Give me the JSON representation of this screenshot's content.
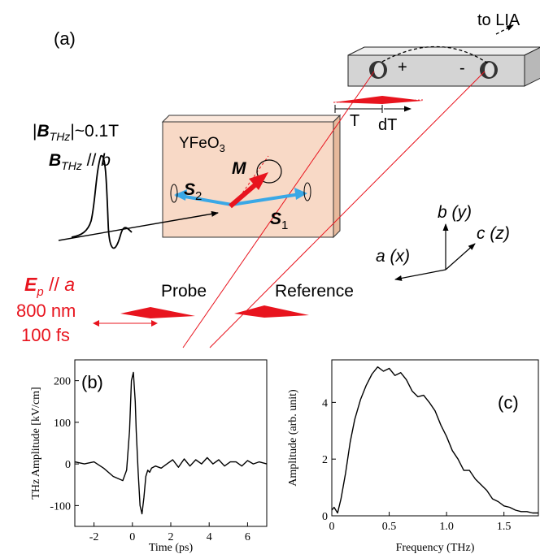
{
  "schematic": {
    "panel_label": "(a)",
    "lia_label": "to LIA",
    "plus_sign": "+",
    "minus_sign": "-",
    "delay_T": "T",
    "delay_dT": "dT",
    "crystal_name": "YFeO",
    "crystal_sub": "3",
    "b_field": {
      "abs_open": "|",
      "B": "B",
      "sub": "THz",
      "abs_close": "|~0.1T"
    },
    "b_dir": {
      "B": "B",
      "sub": "THz",
      "rest": " // ",
      "axis": "b"
    },
    "M": "M",
    "S2": {
      "S": "S",
      "sub": "2"
    },
    "S1": {
      "S": "S",
      "sub": "1"
    },
    "axes": {
      "b": "b (y)",
      "c": "c (z)",
      "a": "a (x)"
    },
    "ep": {
      "E": "E",
      "sub": "p",
      "rest": " // ",
      "axis": "a"
    },
    "wavelength": "800 nm",
    "duration": "100 fs",
    "probe": "Probe",
    "reference": "Reference",
    "colors": {
      "red": "#e8141e",
      "blue": "#3aa8e6",
      "crystal": "#f8d9c6",
      "detector_box": "#d4d4d4"
    }
  },
  "chart_data": [
    {
      "panel": "(b)",
      "type": "line",
      "xlabel": "Time (ps)",
      "ylabel": "THz Amplitude [kV/cm]",
      "xlim": [
        -3,
        7
      ],
      "ylim": [
        -150,
        250
      ],
      "xticks": [
        -2,
        0,
        2,
        4,
        6
      ],
      "yticks": [
        -100,
        0,
        100,
        200
      ],
      "x": [
        -3,
        -2.5,
        -2,
        -1.5,
        -1,
        -0.5,
        -0.3,
        -0.15,
        -0.05,
        0.05,
        0.15,
        0.2,
        0.3,
        0.4,
        0.5,
        0.6,
        0.7,
        0.8,
        0.9,
        1.0,
        1.2,
        1.5,
        1.8,
        2.1,
        2.4,
        2.7,
        3.0,
        3.3,
        3.6,
        3.9,
        4.2,
        4.5,
        4.8,
        5.1,
        5.4,
        5.7,
        6.0,
        6.3,
        6.6,
        7.0
      ],
      "y": [
        5,
        0,
        5,
        -10,
        -30,
        -40,
        -15,
        80,
        200,
        220,
        150,
        80,
        -20,
        -100,
        -120,
        -80,
        -30,
        -15,
        -20,
        -10,
        -5,
        -10,
        0,
        10,
        -8,
        12,
        -5,
        10,
        0,
        15,
        0,
        10,
        -5,
        5,
        5,
        -5,
        8,
        0,
        5,
        0
      ]
    },
    {
      "panel": "(c)",
      "type": "line",
      "xlabel": "Frequency (THz)",
      "ylabel": "Amplitude (arb. unit)",
      "xlim": [
        0,
        1.8
      ],
      "ylim": [
        0,
        5.5
      ],
      "xticks": [
        0,
        0.5,
        1.0,
        1.5
      ],
      "yticks": [
        0,
        2,
        4
      ],
      "x": [
        0,
        0.02,
        0.05,
        0.08,
        0.12,
        0.16,
        0.2,
        0.25,
        0.3,
        0.35,
        0.4,
        0.45,
        0.5,
        0.55,
        0.6,
        0.65,
        0.7,
        0.75,
        0.8,
        0.85,
        0.9,
        0.95,
        1.0,
        1.05,
        1.1,
        1.15,
        1.2,
        1.25,
        1.3,
        1.35,
        1.4,
        1.45,
        1.5,
        1.55,
        1.6,
        1.65,
        1.7,
        1.75,
        1.8
      ],
      "y": [
        0.2,
        0.3,
        0.1,
        0.6,
        1.5,
        2.6,
        3.4,
        4.1,
        4.6,
        5.0,
        5.25,
        5.1,
        5.2,
        4.95,
        5.05,
        4.8,
        4.4,
        4.2,
        4.25,
        4.0,
        3.7,
        3.2,
        2.8,
        2.3,
        2.0,
        1.6,
        1.6,
        1.3,
        1.1,
        0.9,
        0.6,
        0.5,
        0.35,
        0.3,
        0.2,
        0.15,
        0.15,
        0.1,
        0.1
      ]
    }
  ]
}
